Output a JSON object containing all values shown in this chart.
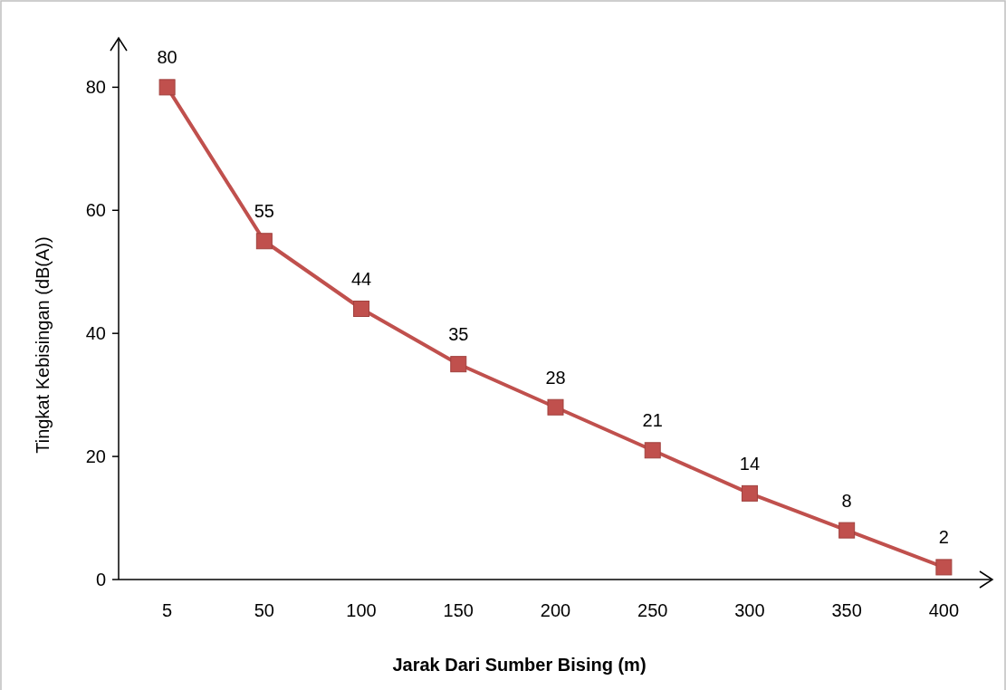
{
  "chart_data": {
    "type": "line",
    "xlabel": "Jarak Dari Sumber Bising (m)",
    "ylabel": "Tingkat Kebisingan (dB(A))",
    "categories": [
      "5",
      "50",
      "100",
      "150",
      "200",
      "250",
      "300",
      "350",
      "400"
    ],
    "series": [
      {
        "color": "#c0504d",
        "values": [
          80,
          55,
          44,
          35,
          28,
          21,
          14,
          8,
          2
        ]
      }
    ],
    "ylim": [
      0,
      88
    ],
    "yticks": [
      0,
      20,
      40,
      60,
      80
    ],
    "marker": "square",
    "data_labels": true,
    "grid": false
  }
}
